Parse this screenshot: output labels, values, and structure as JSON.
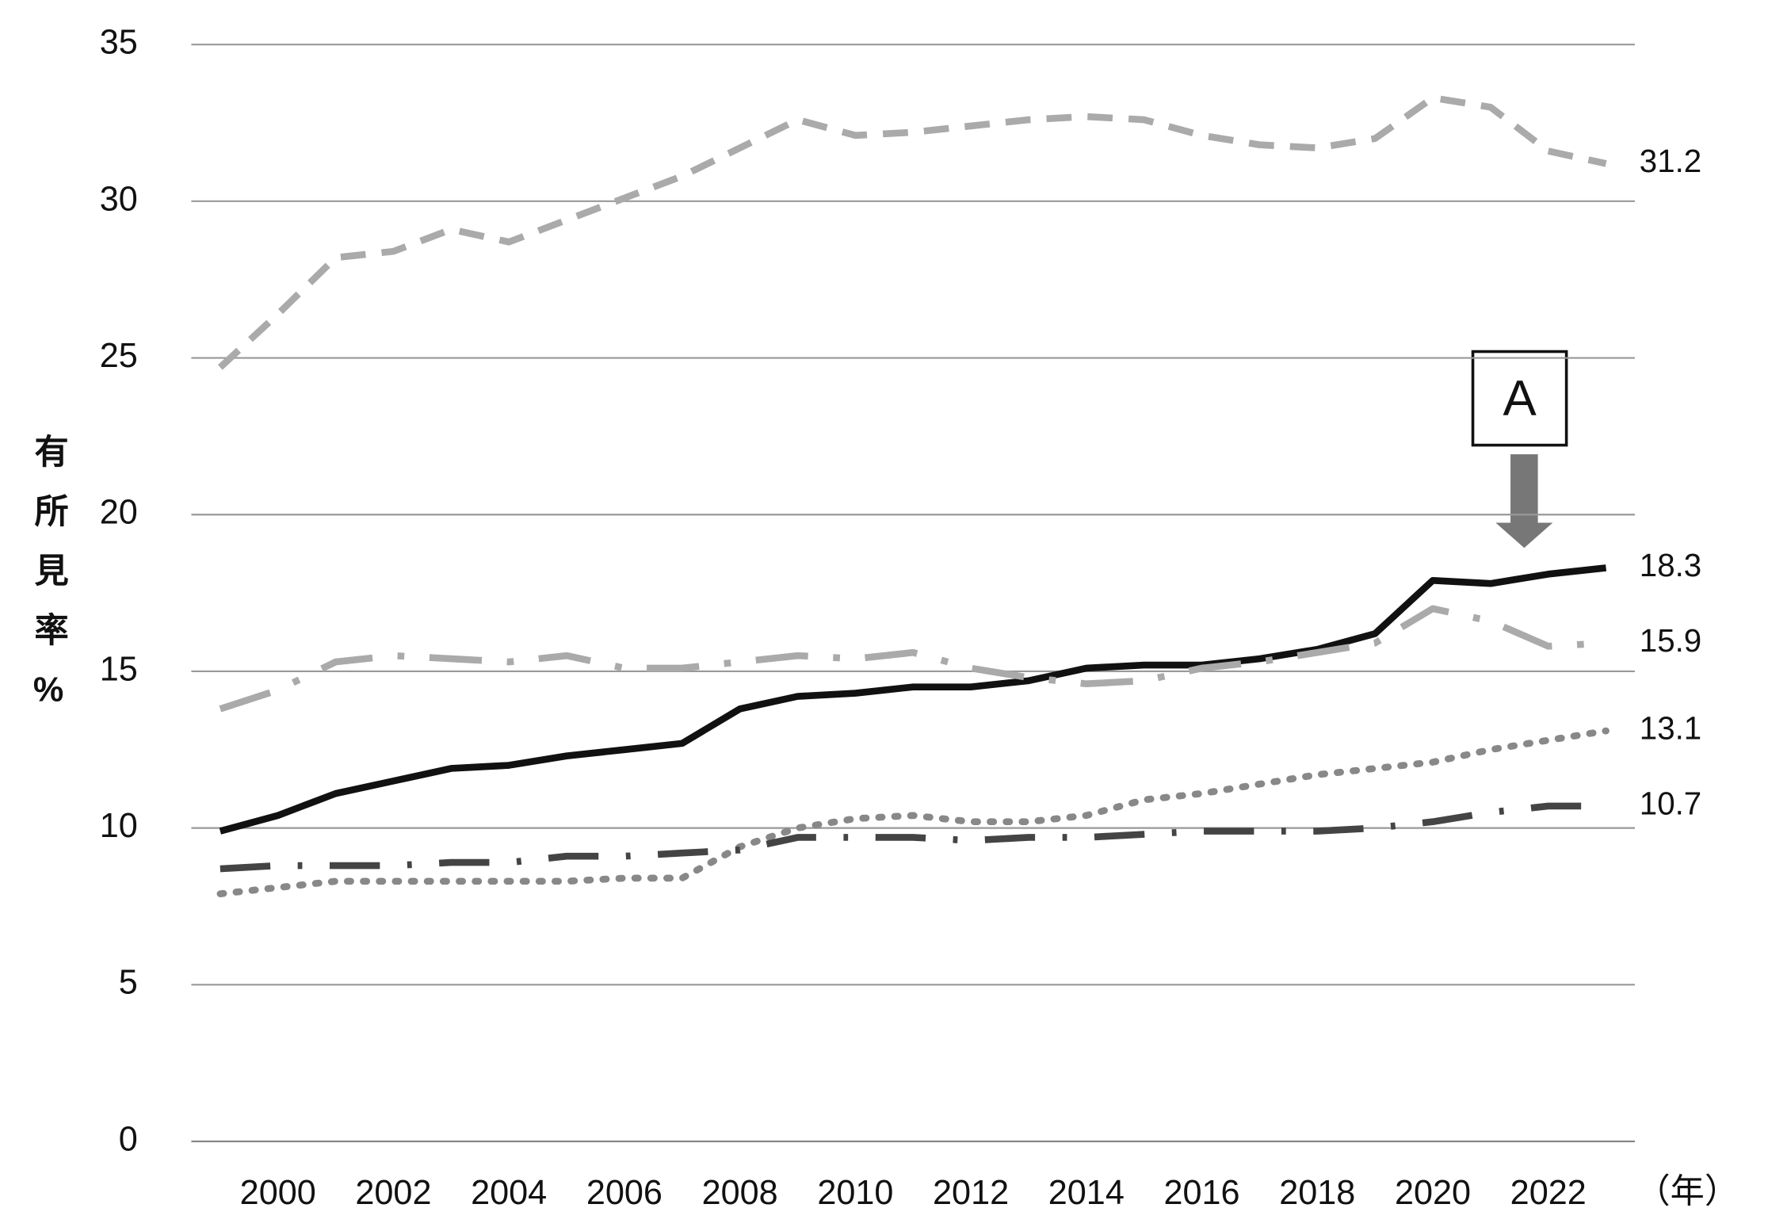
{
  "chart_data": {
    "type": "line",
    "y_label": "有所見率%",
    "x_unit": "（年）",
    "annotation": "A",
    "x": [
      1999,
      2000,
      2001,
      2002,
      2003,
      2004,
      2005,
      2006,
      2007,
      2008,
      2009,
      2010,
      2011,
      2012,
      2013,
      2014,
      2015,
      2016,
      2017,
      2018,
      2019,
      2020,
      2021,
      2022,
      2023
    ],
    "xlim": [
      1998.5,
      2023.5
    ],
    "xticks": [
      2000,
      2002,
      2004,
      2006,
      2008,
      2010,
      2012,
      2014,
      2016,
      2018,
      2020,
      2022
    ],
    "ylim": [
      0,
      35
    ],
    "yticks": [
      0,
      5,
      10,
      15,
      20,
      25,
      30,
      35
    ],
    "grid": true,
    "series": [
      {
        "color": "#aaaaaa",
        "dash": "22 14",
        "values": [
          24.7,
          26.4,
          28.2,
          28.4,
          29.1,
          28.7,
          29.4,
          30.1,
          30.8,
          31.7,
          32.6,
          32.1,
          32.2,
          32.4,
          32.6,
          32.7,
          32.6,
          32.1,
          31.8,
          31.7,
          32.0,
          33.3,
          33.0,
          31.6,
          31.2
        ]
      },
      {
        "color": "#111111",
        "dash": "none",
        "values": [
          9.9,
          10.4,
          11.1,
          11.5,
          11.9,
          12.0,
          12.3,
          12.5,
          12.7,
          13.8,
          14.2,
          14.3,
          14.5,
          14.5,
          14.7,
          15.1,
          15.2,
          15.2,
          15.4,
          15.7,
          16.2,
          17.9,
          17.8,
          18.1,
          18.3
        ]
      },
      {
        "color": "#aaaaaa",
        "dash": "46 22 6 22",
        "values": [
          13.8,
          14.4,
          15.3,
          15.5,
          15.4,
          15.3,
          15.5,
          15.1,
          15.1,
          15.3,
          15.5,
          15.4,
          15.6,
          15.1,
          14.8,
          14.6,
          14.7,
          15.1,
          15.3,
          15.6,
          15.9,
          17.0,
          16.6,
          15.8,
          15.9
        ]
      },
      {
        "color": "#888888",
        "dash": "3 11",
        "values": [
          7.9,
          8.1,
          8.3,
          8.3,
          8.3,
          8.3,
          8.3,
          8.4,
          8.4,
          9.4,
          10.0,
          10.3,
          10.4,
          10.2,
          10.2,
          10.4,
          10.9,
          11.1,
          11.4,
          11.7,
          11.9,
          12.1,
          12.5,
          12.8,
          13.1
        ]
      },
      {
        "color": "#444444",
        "dash": "44 24 4 24",
        "values": [
          8.7,
          8.8,
          8.8,
          8.8,
          8.9,
          8.9,
          9.1,
          9.1,
          9.2,
          9.3,
          9.7,
          9.7,
          9.7,
          9.6,
          9.7,
          9.7,
          9.8,
          9.9,
          9.9,
          9.9,
          10.0,
          10.2,
          10.5,
          10.7,
          10.7
        ]
      }
    ]
  }
}
